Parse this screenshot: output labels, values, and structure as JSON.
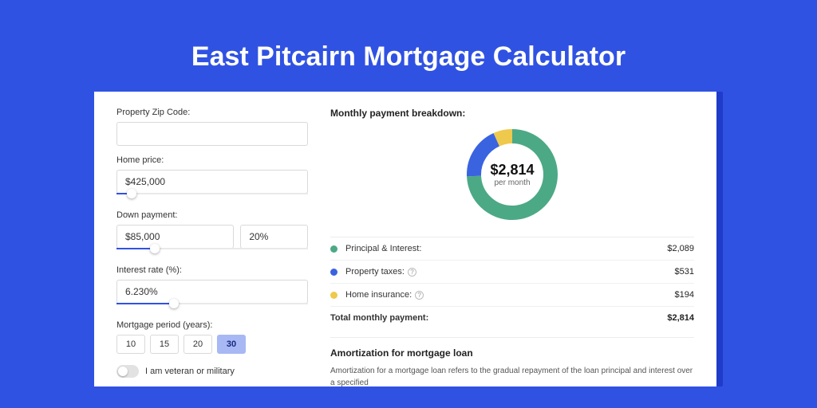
{
  "title": "East Pitcairn Mortgage Calculator",
  "colors": {
    "page_bg": "#3052e3",
    "card_shadow": "#1f3bc9",
    "card_bg": "#ffffff",
    "principal": "#4ca985",
    "taxes": "#3a63e0",
    "insurance": "#efc94c",
    "slider_fill": "#3052e3",
    "period_active_bg": "#a7b8f4"
  },
  "form": {
    "zip_label": "Property Zip Code:",
    "zip_value": "",
    "home_price_label": "Home price:",
    "home_price_value": "$425,000",
    "home_price_slider_pct": 8,
    "down_payment_label": "Down payment:",
    "down_payment_value": "$85,000",
    "down_payment_pct": "20%",
    "down_payment_slider_pct": 20,
    "interest_label": "Interest rate (%):",
    "interest_value": "6.230%",
    "interest_slider_pct": 30,
    "period_label": "Mortgage period (years):",
    "period_options": [
      "10",
      "15",
      "20",
      "30"
    ],
    "period_selected": "30",
    "veteran_label": "I am veteran or military"
  },
  "breakdown": {
    "title": "Monthly payment breakdown:",
    "donut": {
      "amount": "$2,814",
      "per": "per month",
      "slices": [
        {
          "key": "principal",
          "value": 2089,
          "pct": 74.2,
          "color": "#4ca985"
        },
        {
          "key": "taxes",
          "value": 531,
          "pct": 18.9,
          "color": "#3a63e0"
        },
        {
          "key": "insurance",
          "value": 194,
          "pct": 6.9,
          "color": "#efc94c"
        }
      ],
      "radius": 48,
      "stroke_width": 18
    },
    "rows": [
      {
        "label": "Principal & Interest:",
        "value": "$2,089",
        "color": "#4ca985",
        "help": false
      },
      {
        "label": "Property taxes:",
        "value": "$531",
        "color": "#3a63e0",
        "help": true
      },
      {
        "label": "Home insurance:",
        "value": "$194",
        "color": "#efc94c",
        "help": true
      }
    ],
    "total_label": "Total monthly payment:",
    "total_value": "$2,814"
  },
  "amortization": {
    "title": "Amortization for mortgage loan",
    "text": "Amortization for a mortgage loan refers to the gradual repayment of the loan principal and interest over a specified"
  }
}
